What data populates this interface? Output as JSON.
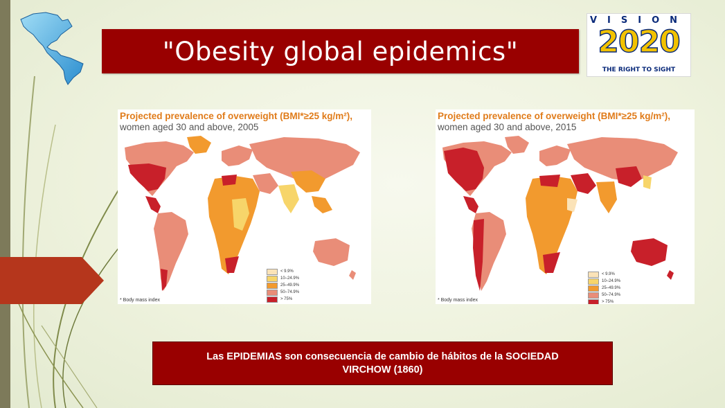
{
  "slide": {
    "title": "\"Obesity global epidemics\"",
    "logo": {
      "top_text": "VISION",
      "big_text": "2020",
      "tagline": "THE RIGHT TO SIGHT"
    },
    "maps": [
      {
        "title_line1": "Projected prevalence of overweight (BMI*≥25 kg/m²),",
        "title_line2": "women aged 30 and above, 2005",
        "footnote": "* Body mass index"
      },
      {
        "title_line1": "Projected prevalence of overweight (BMI*≥25 kg/m²),",
        "title_line2": "women aged 30 and above, 2015",
        "footnote": "* Body mass index"
      }
    ],
    "legend": [
      {
        "label": "< 9.9%",
        "color": "#fbe3b8"
      },
      {
        "label": "10–24.9%",
        "color": "#f7d56a"
      },
      {
        "label": "25–49.9%",
        "color": "#f29a2e"
      },
      {
        "label": "50–74.9%",
        "color": "#e98d78"
      },
      {
        "label": "> 75%",
        "color": "#c8202a"
      }
    ],
    "caption": {
      "line1": "Las EPIDEMIAS  son consecuencia de cambio de hábitos de la SOCIEDAD",
      "line2": "VIRCHOW   (1860)"
    },
    "colors": {
      "title_bg": "#990000",
      "caption_bg": "#990000",
      "accent_arrow": "#b5361c"
    }
  }
}
